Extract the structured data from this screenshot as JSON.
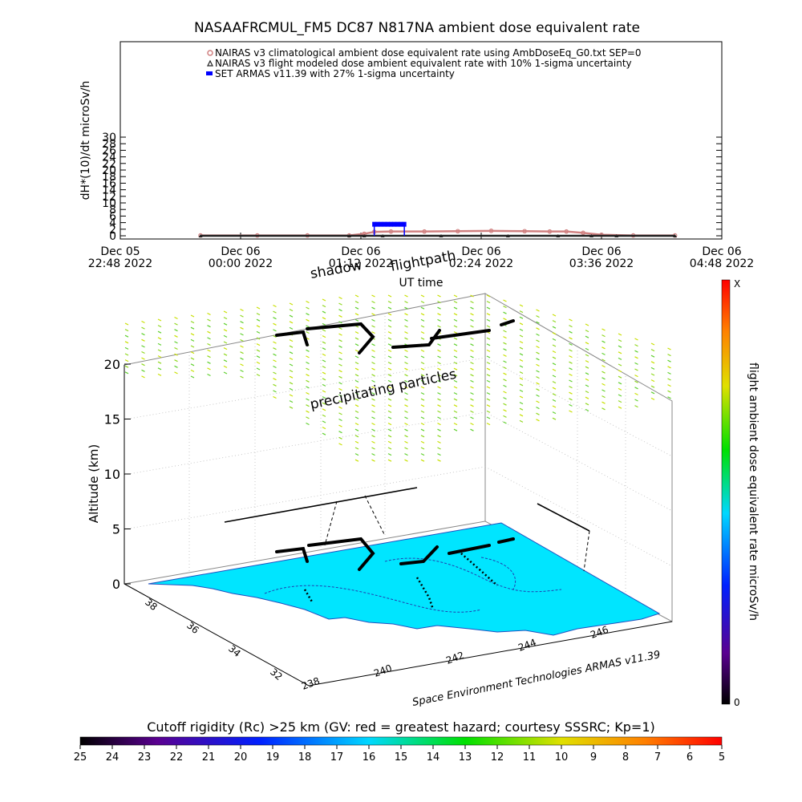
{
  "title": "NASAAFRCMUL_FM5 DC87 N817NA ambient dose equivalent rate",
  "colors": {
    "nairas_clim": "#d08080",
    "nairas_flight": "#202020",
    "armas": "#0000ff",
    "ground": "#00e5ff",
    "particles": "#80d020"
  },
  "timeseries": {
    "type": "line",
    "ylabel": "dH*(10)/dt microSv/h",
    "xlabel": "UT time",
    "ylim": [
      0,
      30
    ],
    "yticks": [
      "0",
      "2",
      "4",
      "6",
      "8",
      "10",
      "12",
      "14",
      "16",
      "18",
      "20",
      "22",
      "24",
      "26",
      "28",
      "30"
    ],
    "xticks": [
      {
        "d": "Dec 05",
        "t": "22:48 2022"
      },
      {
        "d": "Dec 06",
        "t": "00:00 2022"
      },
      {
        "d": "Dec 06",
        "t": "01:12 2022"
      },
      {
        "d": "Dec 06",
        "t": "02:24 2022"
      },
      {
        "d": "Dec 06",
        "t": "03:36 2022"
      },
      {
        "d": "Dec 06",
        "t": "04:48 2022"
      }
    ],
    "x_minutes": [
      0,
      72,
      144,
      216,
      288,
      360
    ],
    "legend": [
      "NAIRAS v3 climatological ambient dose equivalent rate using AmbDoseEq_G0.txt SEP=0",
      "NAIRAS v3 flight modeled dose ambient equivalent rate with 10% 1-sigma uncertainty",
      "SET ARMAS v11.39 with 27% 1-sigma uncertainty"
    ],
    "series": [
      {
        "name": "NAIRAS v3 climatological ambient dose equivalent rate using AmbDoseEq_G0.txt SEP=0",
        "x": [
          "23:36",
          "00:10",
          "00:40",
          "01:05",
          "01:14",
          "01:20",
          "01:30",
          "01:50",
          "02:10",
          "02:30",
          "02:50",
          "03:05",
          "03:15",
          "03:25",
          "03:36",
          "03:55",
          "04:20"
        ],
        "y": [
          0.1,
          0.1,
          0.1,
          0.1,
          0.6,
          1.2,
          1.3,
          1.3,
          1.4,
          1.5,
          1.4,
          1.3,
          1.3,
          0.9,
          0.3,
          0.1,
          0.1
        ]
      },
      {
        "name": "NAIRAS v3 flight modeled dose ambient equivalent rate with 10% 1-sigma uncertainty",
        "x": [
          "23:36",
          "01:05",
          "01:14",
          "01:25",
          "02:00",
          "02:40",
          "03:10",
          "03:30",
          "03:45",
          "04:20"
        ],
        "y": [
          0.0,
          0.0,
          0.0,
          0.0,
          0.0,
          0.0,
          0.0,
          0.0,
          0.0,
          0.0
        ]
      },
      {
        "name": "SET ARMAS v11.39 with 27% 1-sigma uncertainty",
        "x": [
          "01:20",
          "01:22",
          "01:24",
          "01:26",
          "01:28",
          "01:30",
          "01:32",
          "01:34",
          "01:36",
          "01:38"
        ],
        "y": [
          3.5,
          3.5,
          3.5,
          3.5,
          3.5,
          3.5,
          3.5,
          3.5,
          3.5,
          3.5
        ]
      }
    ]
  },
  "scene": {
    "annotation_shadow": "shadow",
    "annotation_flightpath": "flightpath",
    "annotation_particles": "precipitating particles",
    "zlabel": "Altitude (km)",
    "zticks": [
      "0",
      "5",
      "10",
      "15",
      "20"
    ],
    "lat_ticks": [
      "38",
      "36",
      "34",
      "32"
    ],
    "lon_ticks": [
      "238",
      "240",
      "242",
      "244",
      "246"
    ],
    "credit": "Space Environment Technologies ARMAS v11.39"
  },
  "colorbar_right": {
    "label": "flight ambient dose equivalent rate microSv/h",
    "top": "X",
    "bottom": "0"
  },
  "colorbar_bottom": {
    "label": "Cutoff rigidity (Rc) >25 km (GV: red = greatest hazard; courtesy SSSRC; Kp=1)",
    "ticks": [
      "25",
      "24",
      "23",
      "22",
      "21",
      "20",
      "19",
      "18",
      "17",
      "16",
      "15",
      "14",
      "13",
      "12",
      "11",
      "10",
      "9",
      "8",
      "7",
      "6",
      "5"
    ]
  },
  "chart_data": {
    "type": "line",
    "title": "NASAAFRCMUL_FM5 DC87 N817NA ambient dose equivalent rate",
    "xlabel": "UT time",
    "ylabel": "dH*(10)/dt microSv/h",
    "ylim": [
      0,
      30
    ],
    "series": [
      {
        "name": "NAIRAS v3 climatological ambient dose equivalent rate using AmbDoseEq_G0.txt SEP=0",
        "x": [
          "23:36",
          "01:05",
          "01:20",
          "02:30",
          "03:15",
          "03:36",
          "04:20"
        ],
        "y": [
          0.1,
          0.1,
          1.2,
          1.5,
          1.3,
          0.3,
          0.1
        ]
      },
      {
        "name": "NAIRAS v3 flight modeled dose ambient equivalent rate with 10% 1-sigma uncertainty",
        "x": [
          "23:36",
          "04:20"
        ],
        "y": [
          0.0,
          0.0
        ]
      },
      {
        "name": "SET ARMAS v11.39 with 27% 1-sigma uncertainty",
        "x": [
          "01:20",
          "01:38"
        ],
        "y": [
          3.5,
          3.5
        ]
      }
    ]
  }
}
